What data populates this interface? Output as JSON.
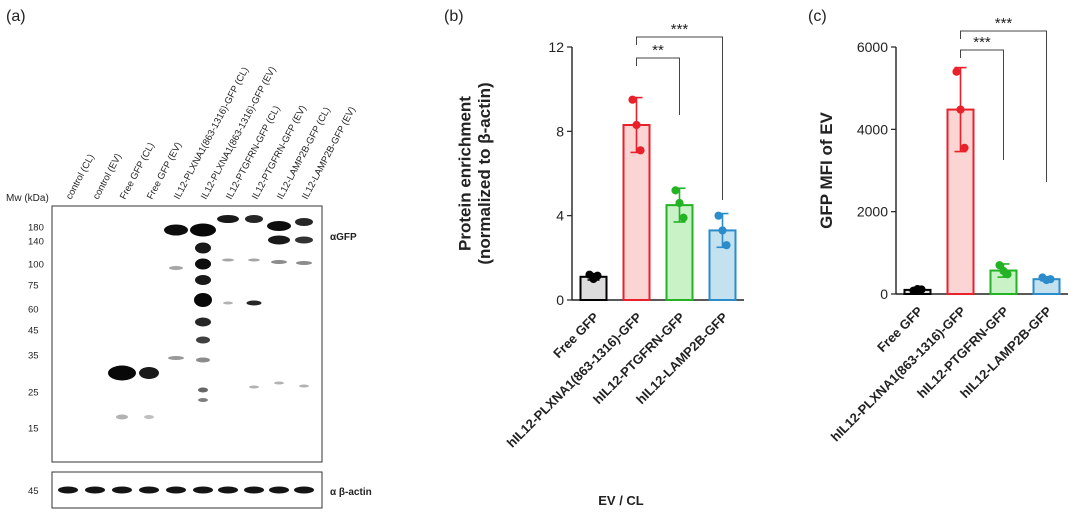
{
  "panels": {
    "a": {
      "panel_label": "(a)",
      "mw_label": "Mw (kDa)",
      "lanes": [
        "control (CL)",
        "control (EV)",
        "Free GFP (CL)",
        "Free GFP  (EV)",
        "IL12-PLXNA1(863-1316)-GFP (CL)",
        "IL12-PLXNA1(863-1316)-GFP (EV)",
        "IL12-PTGFRN-GFP (CL)",
        "IL12-PTGFRN-GFP (EV)",
        "IL12-LAMP2B-GFP (CL)",
        "IL12-LAMP2B-GFP (EV)"
      ],
      "markers": [
        "180",
        "140",
        "100",
        "75",
        "60",
        "45",
        "35",
        "25",
        "15"
      ],
      "blot_label": "αGFP",
      "actin_marker": "45",
      "actin_label": "α β-actin"
    },
    "b": {
      "panel_label": "(b)"
    },
    "c": {
      "panel_label": "(c)"
    }
  },
  "chart_data": [
    {
      "type": "bar",
      "panel": "b",
      "categories": [
        "Free GFP",
        "hIL12-PLXNA1(863-1316)-GFP",
        "hIL12-PTGFRN-GFP",
        "hIL12-LAMP2B-GFP"
      ],
      "values": [
        1.1,
        8.3,
        4.5,
        3.3
      ],
      "errors": [
        0.15,
        1.3,
        0.8,
        0.8
      ],
      "points": [
        [
          1.2,
          1.0,
          1.15
        ],
        [
          9.5,
          8.3,
          7.1
        ],
        [
          5.2,
          4.6,
          3.9
        ],
        [
          4.0,
          3.3,
          2.6
        ]
      ],
      "ylabel": "Protein enrichment\n(normalized to β-actin)",
      "xlabel": "EV / CL",
      "ylim": [
        0,
        12
      ],
      "yticks": [
        "0",
        "4",
        "8",
        "12"
      ],
      "significance": [
        {
          "from": 1,
          "to": 2,
          "label": "**"
        },
        {
          "from": 1,
          "to": 3,
          "label": "***"
        }
      ],
      "colors": {
        "fill": [
          "#dcdcdc",
          "#fbd4d4",
          "#c9f2c6",
          "#c4e1ef"
        ],
        "edge": [
          "#000000",
          "#e8212b",
          "#23b324",
          "#2b8ccc"
        ]
      }
    },
    {
      "type": "bar",
      "panel": "c",
      "categories": [
        "Free GFP",
        "hIL12-PLXNA1(863-1316)-GFP",
        "hIL12-PTGFRN-GFP",
        "hIL12-LAMP2B-GFP"
      ],
      "values": [
        100,
        4480,
        570,
        360
      ],
      "errors": [
        30,
        1020,
        160,
        40
      ],
      "points": [
        [
          80,
          120,
          110
        ],
        [
          5400,
          4480,
          3550
        ],
        [
          700,
          560,
          480
        ],
        [
          400,
          340,
          360
        ]
      ],
      "ylabel": "GFP MFI of EV",
      "ylim": [
        0,
        6000
      ],
      "yticks": [
        "0",
        "2000",
        "4000",
        "6000"
      ],
      "significance": [
        {
          "from": 1,
          "to": 2,
          "label": "***"
        },
        {
          "from": 1,
          "to": 3,
          "label": "***"
        }
      ],
      "colors": {
        "fill": [
          "#dcdcdc",
          "#fbd4d4",
          "#c9f2c6",
          "#c4e1ef"
        ],
        "edge": [
          "#000000",
          "#e8212b",
          "#23b324",
          "#2b8ccc"
        ]
      }
    }
  ]
}
